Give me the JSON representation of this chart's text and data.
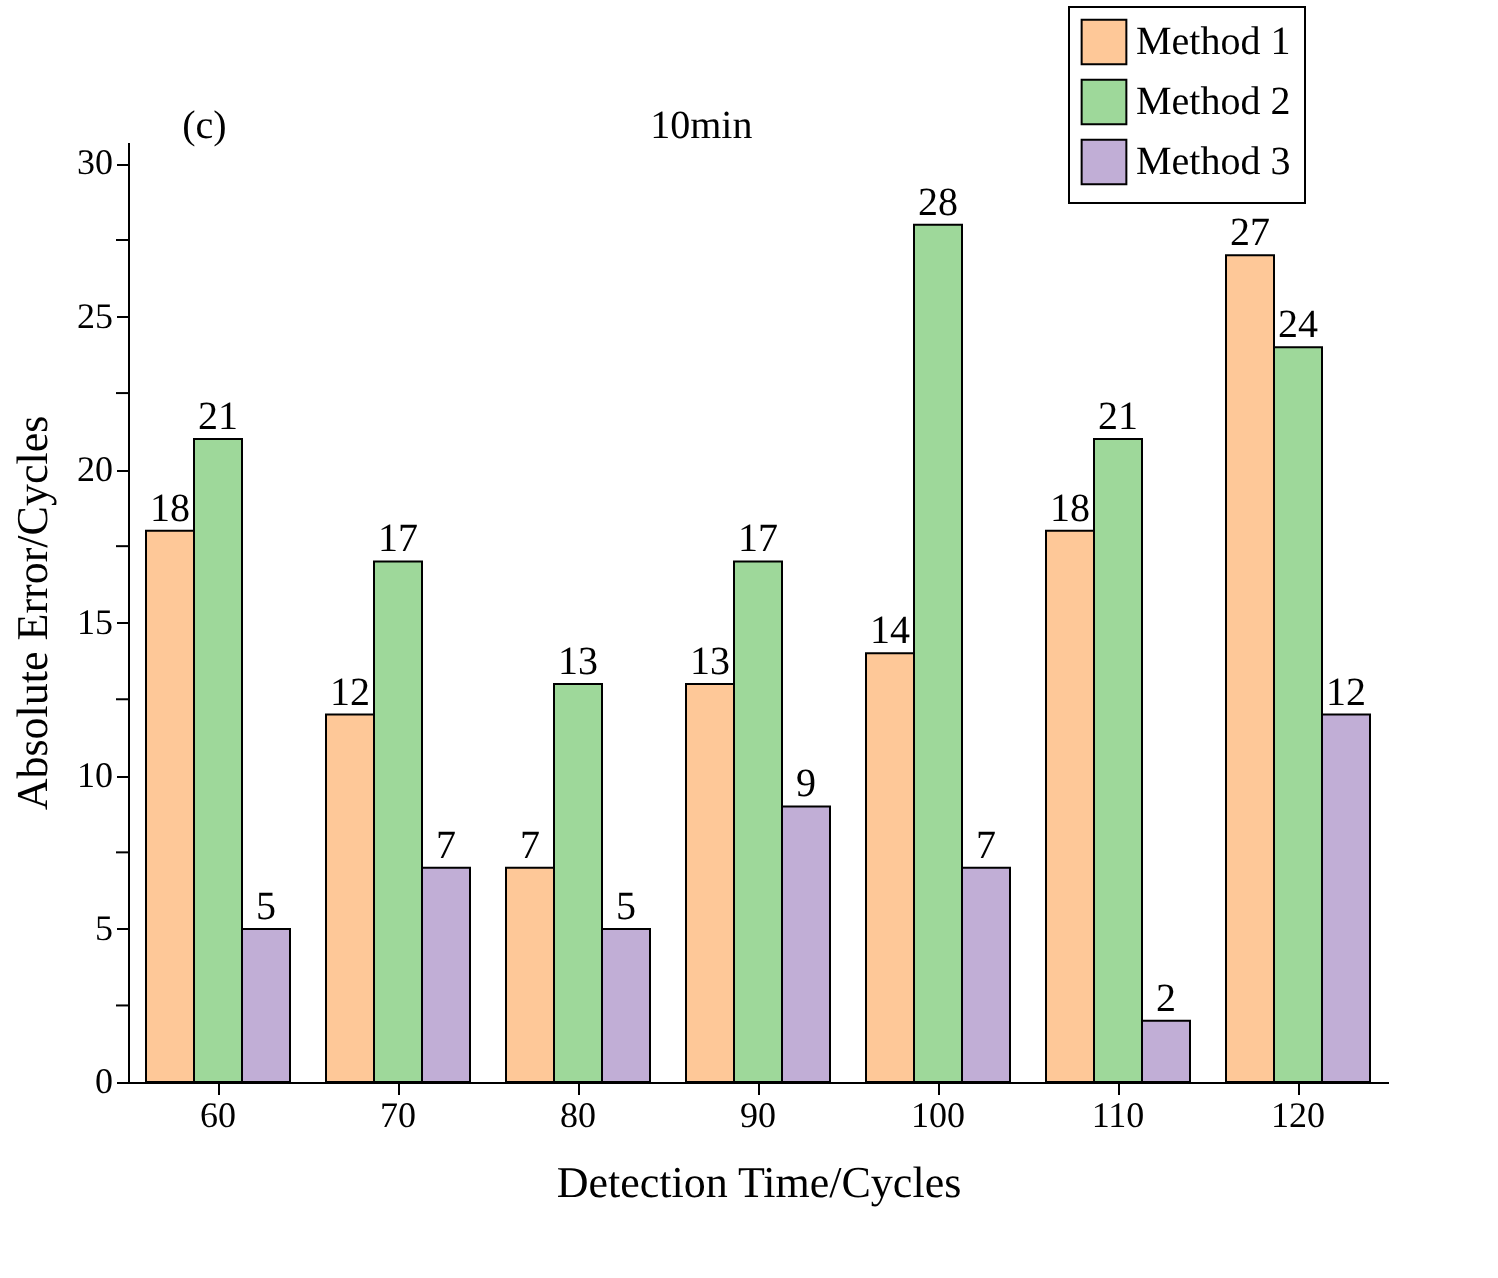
{
  "chart_data": {
    "type": "bar",
    "xlabel": "Detection Time/Cycles",
    "ylabel": "Absolute Error/Cycles",
    "categories": [
      "60",
      "70",
      "80",
      "90",
      "100",
      "110",
      "120"
    ],
    "series": [
      {
        "name": "Method 1",
        "color": "#fec898",
        "values": [
          18,
          12,
          7,
          13,
          14,
          18,
          27
        ]
      },
      {
        "name": "Method 2",
        "color": "#9ed89a",
        "values": [
          21,
          17,
          13,
          17,
          28,
          21,
          24
        ]
      },
      {
        "name": "Method 3",
        "color": "#c1aed6",
        "values": [
          5,
          7,
          5,
          9,
          7,
          2,
          12
        ]
      }
    ],
    "ylim": [
      0,
      30.7
    ],
    "yticks": [
      0,
      {
        "value": 2.5,
        "label": null
      },
      5,
      {
        "value": 7.5,
        "label": null
      },
      10,
      {
        "value": 12.5,
        "label": null
      },
      15,
      {
        "value": 17.5,
        "label": null
      },
      20,
      {
        "value": 22.5,
        "label": null
      },
      25,
      {
        "value": 27.5,
        "label": null
      },
      30
    ],
    "annotations": [
      "(c)",
      "10min"
    ],
    "data_labels": true,
    "grid": false,
    "legend": "top right"
  }
}
